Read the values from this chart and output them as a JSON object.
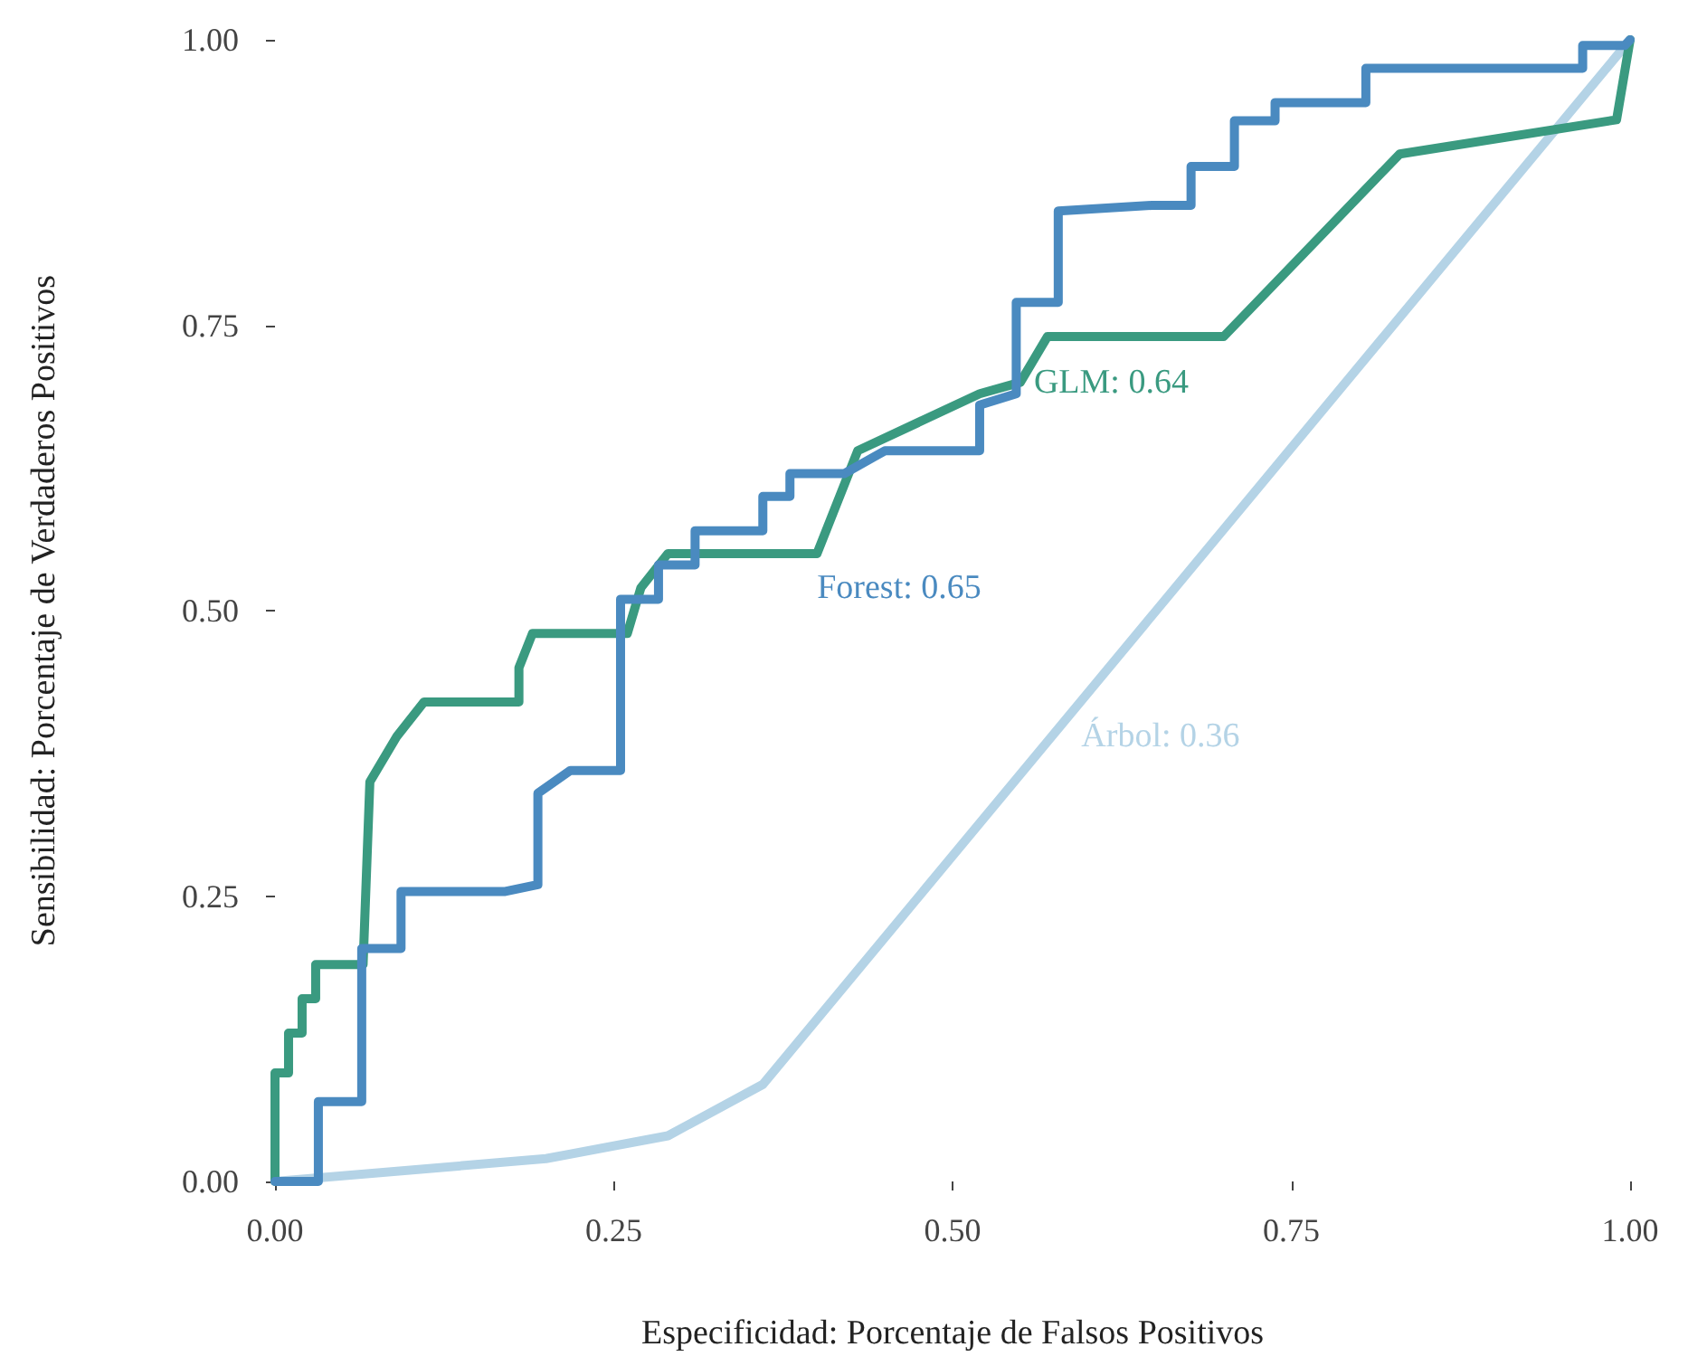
{
  "chart_data": {
    "type": "line",
    "xlabel": "Especificidad: Porcentaje de Falsos Positivos",
    "ylabel": "Sensibilidad: Porcentaje de Verdaderos Positivos",
    "xlim": [
      0,
      1
    ],
    "ylim": [
      0,
      1
    ],
    "xticks": [
      {
        "value": 0,
        "label": "0.00"
      },
      {
        "value": 0.25,
        "label": "0.25"
      },
      {
        "value": 0.5,
        "label": "0.50"
      },
      {
        "value": 0.75,
        "label": "0.75"
      },
      {
        "value": 1,
        "label": "1.00"
      }
    ],
    "yticks": [
      {
        "value": 0,
        "label": "0.00"
      },
      {
        "value": 0.25,
        "label": "0.25"
      },
      {
        "value": 0.5,
        "label": "0.50"
      },
      {
        "value": 0.75,
        "label": "0.75"
      },
      {
        "value": 1,
        "label": "1.00"
      }
    ],
    "marker": "none",
    "line_style": "solid",
    "series": [
      {
        "color": "#b4d3e6",
        "x": [
          0,
          0.2,
          0.29,
          0.36,
          1
        ],
        "values": [
          0,
          0.02,
          0.04,
          0.085,
          1
        ]
      },
      {
        "color": "#3a9a80",
        "x": [
          0,
          0,
          0.01,
          0.01,
          0.02,
          0.02,
          0.03,
          0.03,
          0.065,
          0.07,
          0.08,
          0.09,
          0.11,
          0.18,
          0.18,
          0.19,
          0.26,
          0.27,
          0.29,
          0.4,
          0.43,
          0.52,
          0.55,
          0.57,
          0.7,
          0.83,
          0.99,
          1
        ],
        "values": [
          0,
          0.095,
          0.095,
          0.13,
          0.13,
          0.16,
          0.16,
          0.19,
          0.19,
          0.35,
          0.37,
          0.39,
          0.42,
          0.42,
          0.45,
          0.48,
          0.48,
          0.52,
          0.55,
          0.55,
          0.64,
          0.69,
          0.7,
          0.74,
          0.74,
          0.9,
          0.93,
          1
        ]
      },
      {
        "color": "#4a8ac0",
        "x": [
          0,
          0.032,
          0.032,
          0.064,
          0.064,
          0.093,
          0.093,
          0.17,
          0.194,
          0.194,
          0.218,
          0.255,
          0.255,
          0.283,
          0.283,
          0.31,
          0.31,
          0.36,
          0.36,
          0.38,
          0.38,
          0.42,
          0.45,
          0.52,
          0.52,
          0.547,
          0.547,
          0.578,
          0.578,
          0.647,
          0.676,
          0.676,
          0.708,
          0.708,
          0.738,
          0.738,
          0.805,
          0.805,
          0.965,
          0.965,
          0.996,
          1
        ],
        "values": [
          0,
          0,
          0.07,
          0.07,
          0.204,
          0.204,
          0.254,
          0.254,
          0.26,
          0.34,
          0.36,
          0.36,
          0.51,
          0.51,
          0.54,
          0.54,
          0.57,
          0.57,
          0.6,
          0.6,
          0.62,
          0.62,
          0.64,
          0.64,
          0.68,
          0.69,
          0.77,
          0.77,
          0.85,
          0.855,
          0.855,
          0.889,
          0.889,
          0.929,
          0.929,
          0.945,
          0.945,
          0.975,
          0.975,
          0.995,
          0.995,
          1
        ]
      }
    ],
    "annotations": [
      "Árbol: 0.36",
      "GLM: 0.64",
      "Forest: 0.65"
    ]
  }
}
